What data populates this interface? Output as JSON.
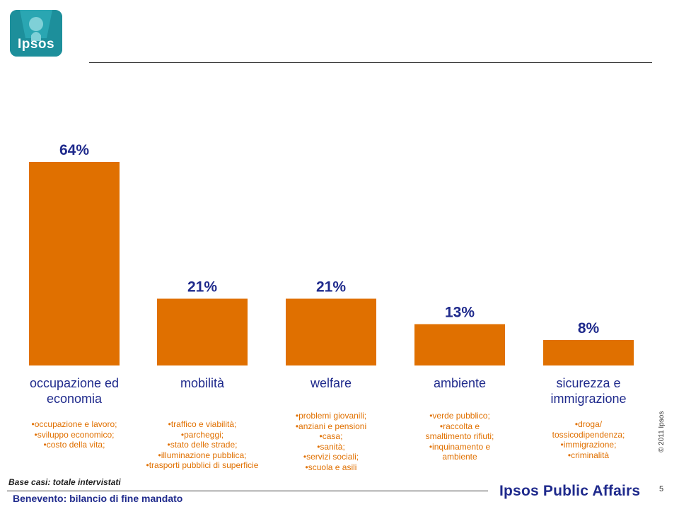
{
  "header": {
    "logo_text": "Ipsos"
  },
  "chart_data": {
    "type": "bar",
    "categories": [
      "occupazione ed economia",
      "mobilità",
      "welfare",
      "ambiente",
      "sicurezza e immigrazione"
    ],
    "category_lines": [
      [
        "occupazione ed",
        "economia"
      ],
      [
        "mobilità"
      ],
      [
        "welfare"
      ],
      [
        "ambiente"
      ],
      [
        "sicurezza e",
        "immigrazione"
      ]
    ],
    "values": [
      64,
      21,
      21,
      13,
      8
    ],
    "value_labels": [
      "64%",
      "21%",
      "21%",
      "13%",
      "8%"
    ],
    "unit": "%",
    "ylim": [
      0,
      64
    ],
    "bar_color": "#e07000",
    "label_color": "#1f2a8c",
    "grid": false,
    "details": [
      [
        "•occupazione e lavoro;",
        "•sviluppo economico;",
        "•costo della vita;"
      ],
      [
        "•traffico e viabilità;",
        "•parcheggi;",
        "•stato delle strade;",
        "•illuminazione pubblica;",
        "•trasporti pubblici di superficie"
      ],
      [
        "•problemi giovanili;",
        "•anziani e pensioni",
        "•casa;",
        "•sanità;",
        "•servizi sociali;",
        "•scuola e asili"
      ],
      [
        "•verde pubblico;",
        "•raccolta e",
        "smaltimento rifiuti;",
        "•inquinamento e",
        "ambiente"
      ],
      [
        "•droga/",
        "tossicodipendenza;",
        "•immigrazione;",
        "•criminalità"
      ]
    ]
  },
  "footer": {
    "base": "Base casi: totale intervistati",
    "title": "Benevento: bilancio di fine mandato",
    "brand": "Ipsos Public Affairs",
    "page": "5",
    "copyright": "© 2011 Ipsos"
  }
}
